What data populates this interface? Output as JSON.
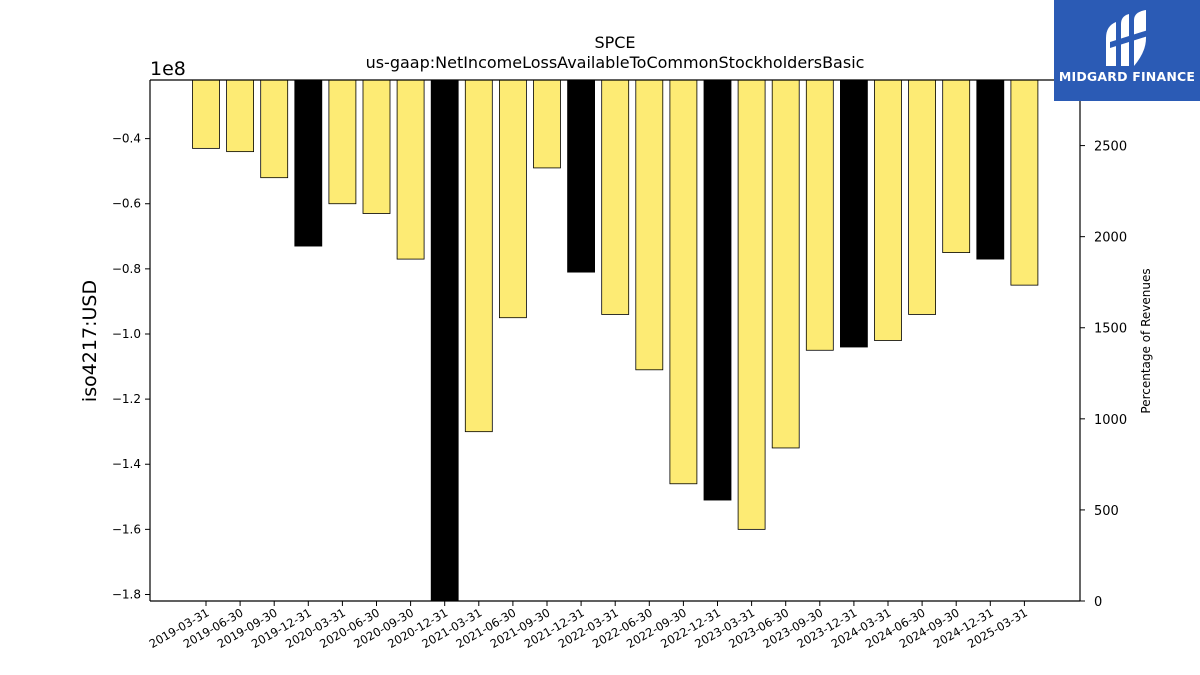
{
  "chart_data": {
    "type": "bar",
    "title": "SPCE",
    "subtitle": "us-gaap:NetIncomeLossAvailableToCommonStockholdersBasic",
    "ylabel": "iso4217:USD",
    "y_offset_label": "1e8",
    "y2label": "Percentage of Revenues",
    "ylim": [
      -1.82,
      -0.22
    ],
    "y2lim": [
      0,
      2860
    ],
    "yticks": [
      -1.8,
      -1.6,
      -1.4,
      -1.2,
      -1.0,
      -0.8,
      -0.6,
      -0.4
    ],
    "y2ticks": [
      0,
      500,
      1000,
      1500,
      2000,
      2500
    ],
    "categories": [
      "2019-03-31",
      "2019-06-30",
      "2019-09-30",
      "2019-12-31",
      "2020-03-31",
      "2020-06-30",
      "2020-09-30",
      "2020-12-31",
      "2021-03-31",
      "2021-06-30",
      "2021-09-30",
      "2021-12-31",
      "2022-03-31",
      "2022-06-30",
      "2022-09-30",
      "2022-12-31",
      "2023-03-31",
      "2023-06-30",
      "2023-09-30",
      "2023-12-31",
      "2024-03-31",
      "2024-06-30",
      "2024-09-30",
      "2024-12-31",
      "2025-03-31"
    ],
    "values": [
      -0.43,
      -0.44,
      -0.52,
      -0.73,
      -0.6,
      -0.63,
      -0.77,
      -1.82,
      -1.3,
      -0.95,
      -0.49,
      -0.81,
      -0.94,
      -1.11,
      -1.46,
      -1.51,
      -1.6,
      -1.35,
      -1.05,
      -1.04,
      -1.02,
      -0.94,
      -0.75,
      -0.77,
      -0.85
    ],
    "bar_colors": [
      "#fdeb74",
      "#fdeb74",
      "#fdeb74",
      "#000000",
      "#fdeb74",
      "#fdeb74",
      "#fdeb74",
      "#000000",
      "#fdeb74",
      "#fdeb74",
      "#fdeb74",
      "#000000",
      "#fdeb74",
      "#fdeb74",
      "#fdeb74",
      "#000000",
      "#fdeb74",
      "#fdeb74",
      "#fdeb74",
      "#000000",
      "#fdeb74",
      "#fdeb74",
      "#fdeb74",
      "#000000",
      "#fdeb74"
    ],
    "grid": false
  },
  "logo": {
    "text": "MIDGARD FINANCE",
    "color": "#2b5bb5"
  }
}
